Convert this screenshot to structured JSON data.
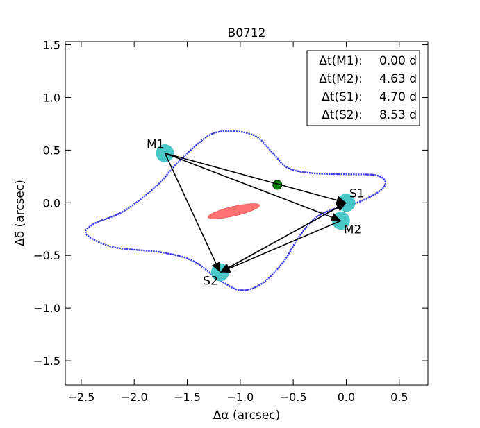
{
  "chart_data": {
    "type": "scatter",
    "title": "B0712",
    "xlabel": "Δα (arcsec)",
    "ylabel": "Δδ (arcsec)",
    "xlim": [
      -2.65,
      0.77
    ],
    "ylim": [
      -1.73,
      1.53
    ],
    "xticks": [
      -2.5,
      -2.0,
      -1.5,
      -1.0,
      -0.5,
      0.0,
      0.5
    ],
    "xtick_labels": [
      "−2.5",
      "−2.0",
      "−1.5",
      "−1.0",
      "−0.5",
      "0.0",
      "0.5"
    ],
    "yticks": [
      -1.5,
      -1.0,
      -0.5,
      0.0,
      0.5,
      1.0,
      1.5
    ],
    "ytick_labels": [
      "−1.5",
      "−1.0",
      "−0.5",
      "0.0",
      "0.5",
      "1.0",
      "1.5"
    ],
    "images": [
      {
        "name": "M1",
        "x": -1.71,
        "y": 0.47,
        "label_dx": -0.09,
        "label_dy": 0.09
      },
      {
        "name": "S1",
        "x": 0.0,
        "y": 0.0,
        "label_dx": 0.1,
        "label_dy": 0.09
      },
      {
        "name": "M2",
        "x": -0.05,
        "y": -0.17,
        "label_dx": 0.11,
        "label_dy": -0.08
      },
      {
        "name": "S2",
        "x": -1.19,
        "y": -0.66,
        "label_dx": -0.09,
        "label_dy": -0.08
      }
    ],
    "source": {
      "x": -0.65,
      "y": 0.17,
      "color": "#008000"
    },
    "lens_galaxy": {
      "x": -1.06,
      "y": -0.08,
      "semi_major": 0.25,
      "semi_minor": 0.045,
      "angle_deg": 13,
      "color": "#ff5a5a"
    },
    "arrows": [
      {
        "from": "M1",
        "to": "S1"
      },
      {
        "from": "M1",
        "to": "M2"
      },
      {
        "from": "M1",
        "to": "S2"
      },
      {
        "from": "S1",
        "to": "S2"
      },
      {
        "from": "M2",
        "to": "S2"
      },
      {
        "from": "S2",
        "to": "S1"
      }
    ],
    "critical_curve": {
      "color": "#2a2ae8",
      "points": [
        [
          -1.06,
          0.68
        ],
        [
          -0.85,
          0.63
        ],
        [
          -0.7,
          0.48
        ],
        [
          -0.55,
          0.33
        ],
        [
          -0.3,
          0.28
        ],
        [
          0.05,
          0.27
        ],
        [
          0.29,
          0.26
        ],
        [
          0.37,
          0.19
        ],
        [
          0.3,
          0.1
        ],
        [
          0.1,
          0.0
        ],
        [
          -0.12,
          -0.06
        ],
        [
          -0.3,
          -0.15
        ],
        [
          -0.45,
          -0.33
        ],
        [
          -0.6,
          -0.57
        ],
        [
          -0.8,
          -0.77
        ],
        [
          -1.0,
          -0.83
        ],
        [
          -1.2,
          -0.73
        ],
        [
          -1.45,
          -0.55
        ],
        [
          -1.75,
          -0.47
        ],
        [
          -2.2,
          -0.42
        ],
        [
          -2.45,
          -0.3
        ],
        [
          -2.38,
          -0.2
        ],
        [
          -2.1,
          -0.08
        ],
        [
          -1.8,
          0.15
        ],
        [
          -1.6,
          0.37
        ],
        [
          -1.4,
          0.56
        ],
        [
          -1.25,
          0.66
        ]
      ]
    },
    "legend": {
      "placement": "top-right",
      "rows": [
        {
          "label": "Δt(M1):",
          "value": "0.00 d"
        },
        {
          "label": "Δt(M2):",
          "value": "4.63 d"
        },
        {
          "label": "Δt(S1):",
          "value": "4.70 d"
        },
        {
          "label": "Δt(S2):",
          "value": "8.53 d"
        }
      ]
    },
    "colors": {
      "image_marker": "#40c4c4",
      "arrow": "#000000"
    }
  }
}
